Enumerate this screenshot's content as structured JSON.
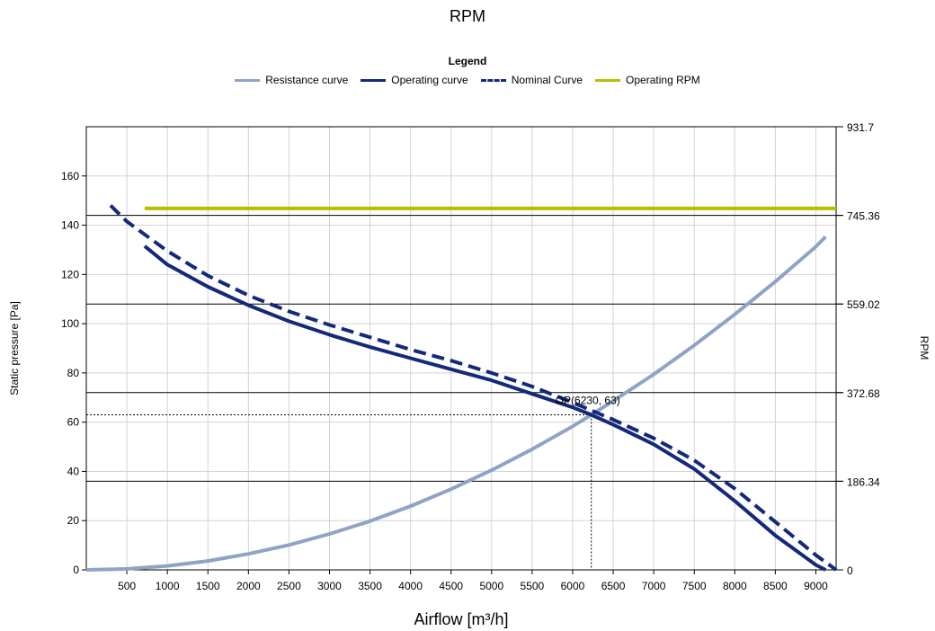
{
  "chart_data": {
    "type": "line",
    "title": "RPM",
    "legend": {
      "title": "Legend",
      "placement": "top-center",
      "entries": [
        {
          "name": "Resistance curve",
          "color": "#8fa3c4",
          "style": "solid"
        },
        {
          "name": "Operating curve",
          "color": "#13297a",
          "style": "solid"
        },
        {
          "name": "Nominal Curve",
          "color": "#13297a",
          "style": "dashed"
        },
        {
          "name": "Operating RPM",
          "color": "#b5bf00",
          "style": "solid"
        }
      ]
    },
    "xlabel": "Airflow [m³/h]",
    "ylabel": "Static pressure [Pa]",
    "y2label": "RPM",
    "xlim": [
      0,
      9250
    ],
    "ylim": [
      0,
      180
    ],
    "y2lim": [
      0,
      931.7
    ],
    "x_ticks": [
      500,
      1000,
      1500,
      2000,
      2500,
      3000,
      3500,
      4000,
      4500,
      5000,
      5500,
      6000,
      6500,
      7000,
      7500,
      8000,
      8500,
      9000
    ],
    "y_ticks": [
      0,
      20,
      40,
      60,
      80,
      100,
      120,
      140,
      160
    ],
    "y2_ticks": [
      0,
      186.34,
      372.68,
      559.02,
      745.36,
      931.7
    ],
    "y2_tick_labels": [
      "0",
      "186.34",
      "372.68",
      "559.02",
      "745.36",
      "931.7"
    ],
    "grid": true,
    "series": [
      {
        "name": "Resistance curve",
        "axis": "left",
        "color": "#8fa3c4",
        "x": [
          0,
          500,
          1000,
          1500,
          2000,
          2500,
          3000,
          3500,
          4000,
          4500,
          5000,
          5500,
          6000,
          6230,
          6500,
          7000,
          7500,
          8000,
          8500,
          9000,
          9120
        ],
        "y": [
          0,
          0.4,
          1.6,
          3.6,
          6.5,
          10.1,
          14.6,
          19.8,
          25.9,
          32.8,
          40.5,
          49,
          58.3,
          63,
          68.6,
          79.4,
          91.2,
          103.8,
          117.1,
          131.3,
          135.3
        ]
      },
      {
        "name": "Operating curve",
        "axis": "left",
        "color": "#13297a",
        "x": [
          720,
          1000,
          1500,
          2000,
          2500,
          3000,
          3500,
          4000,
          4500,
          5000,
          5500,
          6000,
          6230,
          6500,
          7000,
          7500,
          8000,
          8500,
          9000,
          9120
        ],
        "y": [
          131.5,
          124,
          115,
          107.5,
          101,
          95.5,
          90.5,
          86,
          81.5,
          77,
          71.5,
          66,
          63,
          59,
          51,
          41,
          28,
          14,
          2,
          0
        ]
      },
      {
        "name": "Nominal Curve",
        "axis": "left",
        "color": "#13297a",
        "x": [
          300,
          500,
          1000,
          1500,
          2000,
          2500,
          3000,
          3500,
          4000,
          4500,
          5000,
          5500,
          6000,
          6500,
          7000,
          7500,
          8000,
          8500,
          9000,
          9250
        ],
        "y": [
          148,
          141.5,
          129.5,
          119.5,
          111.5,
          105,
          99.5,
          94.5,
          89.5,
          85,
          80,
          74.5,
          68,
          61,
          53.5,
          44.5,
          33,
          19.5,
          6,
          0
        ]
      },
      {
        "name": "Operating RPM",
        "axis": "right",
        "color": "#b5bf00",
        "x": [
          720,
          9250
        ],
        "y": [
          760,
          760
        ]
      }
    ],
    "operating_point": {
      "x": 6230,
      "y": 63,
      "label": "OP(6230, 63)"
    }
  }
}
